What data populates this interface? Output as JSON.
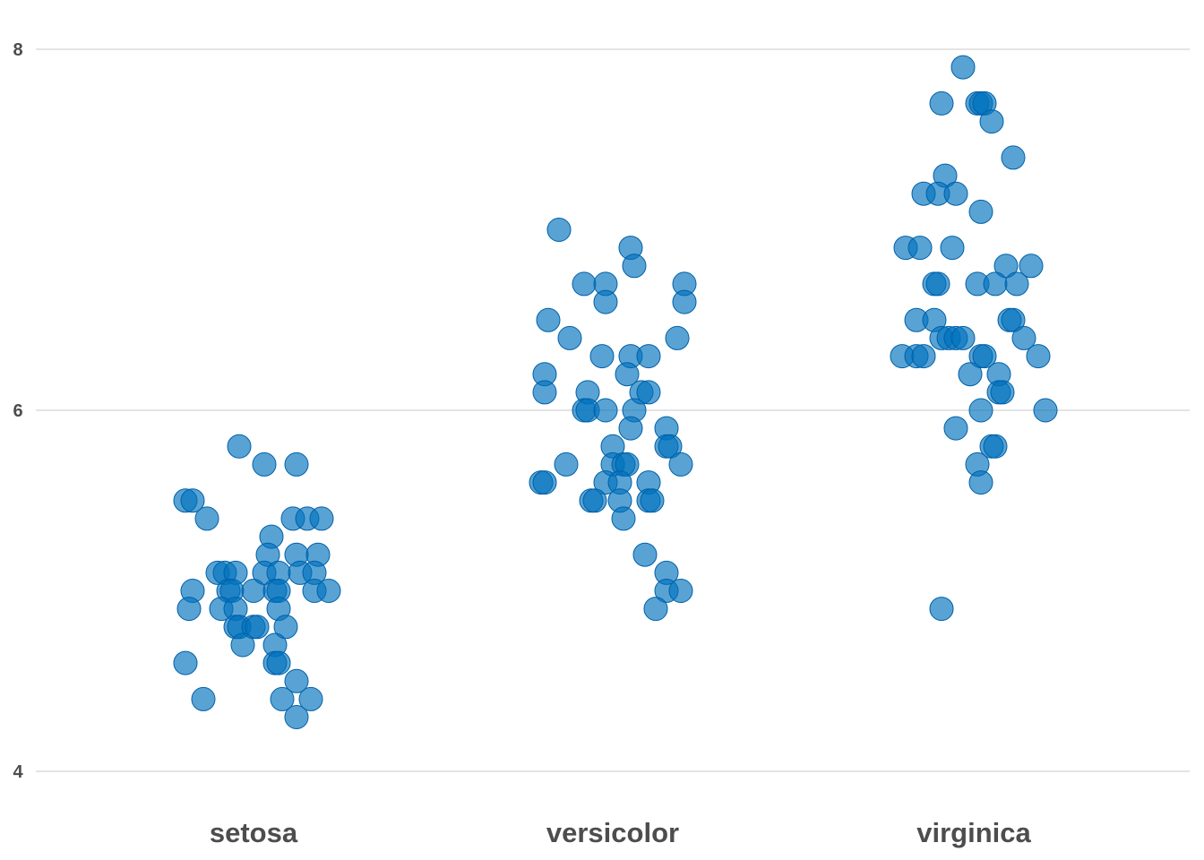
{
  "chart_data": {
    "type": "scatter",
    "title": "",
    "xlabel": "",
    "ylabel": "",
    "categories": [
      "setosa",
      "versicolor",
      "virginica"
    ],
    "ylim": [
      3.8,
      8.2
    ],
    "yticks": [
      4,
      6,
      8
    ],
    "grid": true,
    "colors": {
      "point_fill": "#0072BD",
      "point_stroke": "#0060A8",
      "point_opacity": 0.65,
      "grid": "#c8c8c8",
      "label": "#4d4d4d"
    },
    "series": [
      {
        "category": "setosa",
        "points": [
          {
            "x": -0.19,
            "y": 5.5
          },
          {
            "x": -0.17,
            "y": 5.5
          },
          {
            "x": -0.13,
            "y": 5.4
          },
          {
            "x": -0.04,
            "y": 5.8
          },
          {
            "x": 0.03,
            "y": 5.7
          },
          {
            "x": 0.12,
            "y": 5.7
          },
          {
            "x": 0.11,
            "y": 5.4
          },
          {
            "x": 0.15,
            "y": 5.4
          },
          {
            "x": 0.19,
            "y": 5.4
          },
          {
            "x": 0.05,
            "y": 5.3
          },
          {
            "x": 0.04,
            "y": 5.2
          },
          {
            "x": 0.12,
            "y": 5.2
          },
          {
            "x": 0.18,
            "y": 5.2
          },
          {
            "x": -0.1,
            "y": 5.1
          },
          {
            "x": -0.08,
            "y": 5.1
          },
          {
            "x": -0.05,
            "y": 5.1
          },
          {
            "x": 0.03,
            "y": 5.1
          },
          {
            "x": 0.07,
            "y": 5.1
          },
          {
            "x": 0.13,
            "y": 5.1
          },
          {
            "x": 0.17,
            "y": 5.1
          },
          {
            "x": -0.17,
            "y": 5.0
          },
          {
            "x": -0.07,
            "y": 5.0
          },
          {
            "x": -0.06,
            "y": 5.0
          },
          {
            "x": 0.0,
            "y": 5.0
          },
          {
            "x": 0.06,
            "y": 5.0
          },
          {
            "x": 0.07,
            "y": 5.0
          },
          {
            "x": 0.17,
            "y": 5.0
          },
          {
            "x": 0.21,
            "y": 5.0
          },
          {
            "x": -0.18,
            "y": 4.9
          },
          {
            "x": -0.09,
            "y": 4.9
          },
          {
            "x": -0.05,
            "y": 4.9
          },
          {
            "x": 0.07,
            "y": 4.9
          },
          {
            "x": -0.05,
            "y": 4.8
          },
          {
            "x": -0.04,
            "y": 4.8
          },
          {
            "x": 0.0,
            "y": 4.8
          },
          {
            "x": 0.01,
            "y": 4.8
          },
          {
            "x": 0.09,
            "y": 4.8
          },
          {
            "x": -0.03,
            "y": 4.7
          },
          {
            "x": 0.06,
            "y": 4.7
          },
          {
            "x": -0.19,
            "y": 4.6
          },
          {
            "x": 0.06,
            "y": 4.6
          },
          {
            "x": 0.07,
            "y": 4.6
          },
          {
            "x": 0.12,
            "y": 4.5
          },
          {
            "x": -0.14,
            "y": 4.4
          },
          {
            "x": 0.08,
            "y": 4.4
          },
          {
            "x": 0.16,
            "y": 4.4
          },
          {
            "x": 0.12,
            "y": 4.3
          }
        ]
      },
      {
        "category": "versicolor",
        "points": [
          {
            "x": -0.15,
            "y": 7.0
          },
          {
            "x": 0.05,
            "y": 6.9
          },
          {
            "x": 0.06,
            "y": 6.8
          },
          {
            "x": -0.08,
            "y": 6.7
          },
          {
            "x": -0.02,
            "y": 6.7
          },
          {
            "x": 0.2,
            "y": 6.7
          },
          {
            "x": -0.02,
            "y": 6.6
          },
          {
            "x": 0.2,
            "y": 6.6
          },
          {
            "x": -0.18,
            "y": 6.5
          },
          {
            "x": -0.12,
            "y": 6.4
          },
          {
            "x": 0.18,
            "y": 6.4
          },
          {
            "x": -0.03,
            "y": 6.3
          },
          {
            "x": 0.05,
            "y": 6.3
          },
          {
            "x": 0.1,
            "y": 6.3
          },
          {
            "x": -0.19,
            "y": 6.2
          },
          {
            "x": 0.04,
            "y": 6.2
          },
          {
            "x": -0.19,
            "y": 6.1
          },
          {
            "x": -0.07,
            "y": 6.1
          },
          {
            "x": 0.08,
            "y": 6.1
          },
          {
            "x": 0.1,
            "y": 6.1
          },
          {
            "x": -0.08,
            "y": 6.0
          },
          {
            "x": -0.07,
            "y": 6.0
          },
          {
            "x": -0.02,
            "y": 6.0
          },
          {
            "x": 0.06,
            "y": 6.0
          },
          {
            "x": 0.05,
            "y": 5.9
          },
          {
            "x": 0.15,
            "y": 5.9
          },
          {
            "x": 0.0,
            "y": 5.8
          },
          {
            "x": 0.15,
            "y": 5.8
          },
          {
            "x": 0.16,
            "y": 5.8
          },
          {
            "x": -0.13,
            "y": 5.7
          },
          {
            "x": 0.0,
            "y": 5.7
          },
          {
            "x": 0.03,
            "y": 5.7
          },
          {
            "x": 0.04,
            "y": 5.7
          },
          {
            "x": 0.19,
            "y": 5.7
          },
          {
            "x": -0.2,
            "y": 5.6
          },
          {
            "x": -0.19,
            "y": 5.6
          },
          {
            "x": -0.02,
            "y": 5.6
          },
          {
            "x": 0.02,
            "y": 5.6
          },
          {
            "x": 0.1,
            "y": 5.6
          },
          {
            "x": -0.06,
            "y": 5.5
          },
          {
            "x": -0.05,
            "y": 5.5
          },
          {
            "x": 0.02,
            "y": 5.5
          },
          {
            "x": 0.1,
            "y": 5.5
          },
          {
            "x": 0.11,
            "y": 5.5
          },
          {
            "x": 0.03,
            "y": 5.4
          },
          {
            "x": 0.09,
            "y": 5.2
          },
          {
            "x": 0.15,
            "y": 5.1
          },
          {
            "x": 0.15,
            "y": 5.0
          },
          {
            "x": 0.19,
            "y": 5.0
          },
          {
            "x": 0.12,
            "y": 4.9
          }
        ]
      },
      {
        "category": "virginica",
        "points": [
          {
            "x": -0.03,
            "y": 7.9
          },
          {
            "x": -0.09,
            "y": 7.7
          },
          {
            "x": 0.01,
            "y": 7.7
          },
          {
            "x": 0.02,
            "y": 7.7
          },
          {
            "x": 0.03,
            "y": 7.7
          },
          {
            "x": 0.05,
            "y": 7.6
          },
          {
            "x": 0.11,
            "y": 7.4
          },
          {
            "x": -0.08,
            "y": 7.3
          },
          {
            "x": -0.14,
            "y": 7.2
          },
          {
            "x": -0.1,
            "y": 7.2
          },
          {
            "x": -0.05,
            "y": 7.2
          },
          {
            "x": 0.02,
            "y": 7.1
          },
          {
            "x": -0.19,
            "y": 6.9
          },
          {
            "x": -0.15,
            "y": 6.9
          },
          {
            "x": -0.06,
            "y": 6.9
          },
          {
            "x": 0.09,
            "y": 6.8
          },
          {
            "x": 0.16,
            "y": 6.8
          },
          {
            "x": -0.11,
            "y": 6.7
          },
          {
            "x": -0.1,
            "y": 6.7
          },
          {
            "x": 0.01,
            "y": 6.7
          },
          {
            "x": 0.06,
            "y": 6.7
          },
          {
            "x": 0.12,
            "y": 6.7
          },
          {
            "x": -0.16,
            "y": 6.5
          },
          {
            "x": -0.11,
            "y": 6.5
          },
          {
            "x": 0.1,
            "y": 6.5
          },
          {
            "x": 0.11,
            "y": 6.5
          },
          {
            "x": -0.09,
            "y": 6.4
          },
          {
            "x": -0.07,
            "y": 6.4
          },
          {
            "x": -0.05,
            "y": 6.4
          },
          {
            "x": -0.03,
            "y": 6.4
          },
          {
            "x": 0.14,
            "y": 6.4
          },
          {
            "x": -0.2,
            "y": 6.3
          },
          {
            "x": -0.16,
            "y": 6.3
          },
          {
            "x": -0.14,
            "y": 6.3
          },
          {
            "x": 0.02,
            "y": 6.3
          },
          {
            "x": 0.03,
            "y": 6.3
          },
          {
            "x": 0.18,
            "y": 6.3
          },
          {
            "x": -0.01,
            "y": 6.2
          },
          {
            "x": 0.07,
            "y": 6.2
          },
          {
            "x": 0.07,
            "y": 6.1
          },
          {
            "x": 0.08,
            "y": 6.1
          },
          {
            "x": 0.02,
            "y": 6.0
          },
          {
            "x": 0.2,
            "y": 6.0
          },
          {
            "x": -0.05,
            "y": 5.9
          },
          {
            "x": 0.05,
            "y": 5.8
          },
          {
            "x": 0.06,
            "y": 5.8
          },
          {
            "x": 0.01,
            "y": 5.7
          },
          {
            "x": 0.02,
            "y": 5.6
          },
          {
            "x": -0.09,
            "y": 4.9
          }
        ]
      }
    ]
  }
}
